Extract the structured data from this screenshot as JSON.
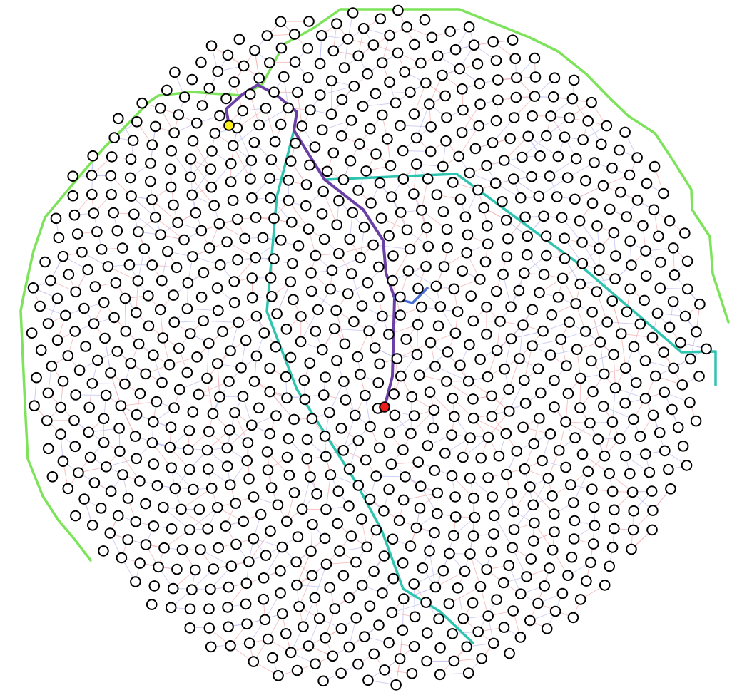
{
  "diagram": {
    "type": "network-graph",
    "node_count": 1000,
    "labels": [],
    "colors": {
      "background": "#ffffff",
      "node_fill": "#ffffff",
      "node_stroke": "#000000",
      "edge_red": "#f5b4b4",
      "edge_blue": "#c3c3f2",
      "boundary_path": "#7de35a",
      "cyan_path": "#2ec4b0",
      "purple_path": "#6a3fa6",
      "blue_branch": "#4a6fd4",
      "start_node": "#ffef1a",
      "end_node": "#ea1c1c"
    },
    "special_nodes": {
      "start": "yellow-node",
      "end": "red-node"
    },
    "paths": [
      {
        "name": "boundary-path",
        "color": "boundary_path"
      },
      {
        "name": "cyan-path",
        "color": "cyan_path"
      },
      {
        "name": "purple-path",
        "color": "purple_path"
      },
      {
        "name": "blue-branch",
        "color": "blue_branch"
      }
    ]
  }
}
